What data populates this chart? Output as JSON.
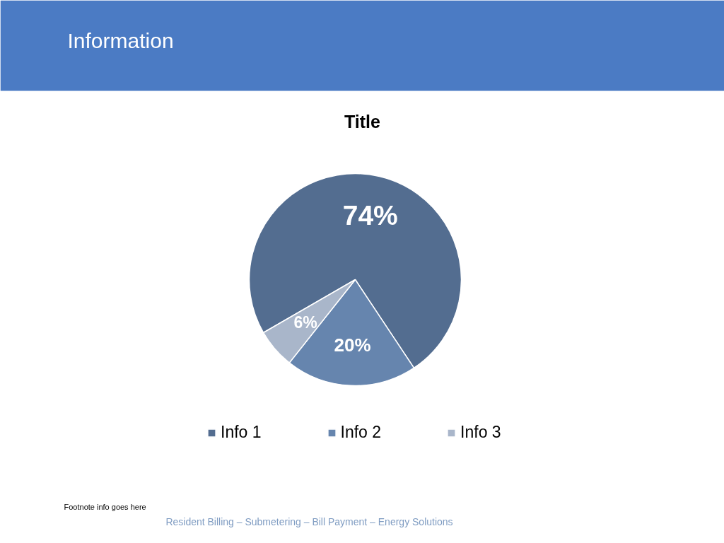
{
  "chart_data": {
    "type": "pie",
    "title": "Information",
    "subtitle": "Title",
    "categories": [
      "Info 1",
      "Info 2",
      "Info 3"
    ],
    "values": [
      74,
      20,
      6
    ],
    "colors": [
      "#536d90",
      "#6685ae",
      "#a9b6ca"
    ],
    "value_labels": [
      "74%",
      "20%",
      "6%"
    ],
    "legend": "bottom",
    "annotations": [
      "Footnote info goes here",
      "Resident Billing – Submetering – Bill Payment – Energy Solutions"
    ]
  }
}
